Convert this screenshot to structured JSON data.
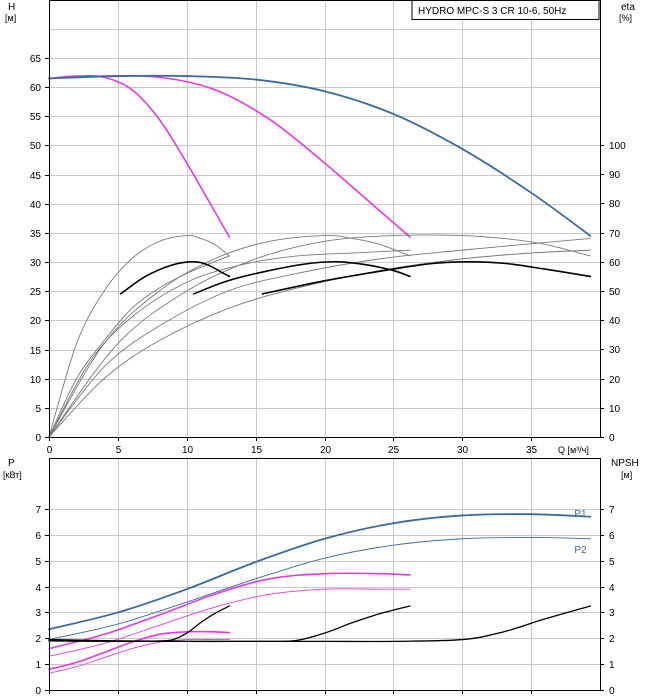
{
  "chart_data": [
    {
      "type": "line",
      "title": "HYDRO MPC-S 3 CR 10-6, 50Hz",
      "ylabel_left": "H",
      "yunit_left": "[м]",
      "ylabel_right": "eta",
      "yunit_right": "[%]",
      "xlabel": "Q [м³/ч]",
      "xlim": [
        0,
        40
      ],
      "ylim_left": [
        0,
        70
      ],
      "ylim_right": [
        0,
        140
      ],
      "x_ticks": [
        0,
        5,
        10,
        15,
        20,
        25,
        30,
        35
      ],
      "y_ticks_left": [
        0,
        5,
        10,
        15,
        20,
        25,
        30,
        35,
        40,
        45,
        50,
        55,
        60,
        65
      ],
      "y_ticks_right": [
        0,
        10,
        20,
        30,
        40,
        50,
        60,
        70,
        80,
        90,
        100
      ],
      "grid": true,
      "series": [
        {
          "axis": "left",
          "color": "#e23ae2",
          "width": 1.6,
          "x": [
            0,
            2,
            4,
            6,
            8,
            10,
            12,
            13.1
          ],
          "y": [
            61.5,
            61.9,
            61.7,
            59.6,
            54.5,
            47,
            38.8,
            34.3
          ]
        },
        {
          "axis": "left",
          "color": "#e23ae2",
          "width": 1.6,
          "x": [
            0,
            4,
            8,
            12,
            16,
            20,
            24,
            26.2
          ],
          "y": [
            61.5,
            61.9,
            61.7,
            59.6,
            54.5,
            47,
            38.8,
            34.3
          ]
        },
        {
          "axis": "left",
          "color": "#3a6a9e",
          "width": 1.8,
          "x": [
            0,
            5,
            10,
            15,
            20,
            25,
            30,
            35,
            39.3
          ],
          "y": [
            61.5,
            61.9,
            61.9,
            61.3,
            59.3,
            55.4,
            49.4,
            41.9,
            34.5
          ]
        },
        {
          "axis": "right",
          "color": "#7a7a7a",
          "width": 0.9,
          "x": [
            0,
            2,
            4,
            6,
            8,
            10,
            11,
            12,
            13.1
          ],
          "y": [
            0,
            32,
            50,
            61,
            67,
            69,
            68,
            66,
            62
          ]
        },
        {
          "axis": "right",
          "color": "#7a7a7a",
          "width": 0.9,
          "x": [
            0,
            4,
            8,
            12,
            16,
            20,
            22,
            24,
            26.2
          ],
          "y": [
            0,
            32,
            50,
            61,
            67,
            69,
            68,
            66,
            62
          ]
        },
        {
          "axis": "right",
          "color": "#7a7a7a",
          "width": 0.9,
          "x": [
            0,
            5,
            10,
            15,
            20,
            25,
            30,
            33,
            36,
            39.3
          ],
          "y": [
            0,
            32,
            50,
            61,
            67,
            69,
            69,
            68,
            66,
            62
          ]
        },
        {
          "axis": "right",
          "color": "#7a7a7a",
          "width": 0.9,
          "x": [
            0,
            3,
            6,
            10,
            14,
            18,
            22,
            26.2
          ],
          "y": [
            0,
            26,
            41,
            53,
            59,
            62,
            63,
            64
          ]
        },
        {
          "axis": "right",
          "color": "#7a7a7a",
          "width": 0.9,
          "x": [
            0,
            4,
            8,
            13,
            18,
            24,
            30,
            39.3
          ],
          "y": [
            0,
            24,
            38,
            50,
            56,
            61,
            64,
            68
          ]
        },
        {
          "axis": "right",
          "color": "#7a7a7a",
          "width": 0.9,
          "x": [
            0,
            4,
            8,
            13,
            18,
            24,
            30,
            35,
            39.3
          ],
          "y": [
            0,
            20,
            33,
            44,
            51,
            57,
            61,
            63,
            64
          ]
        },
        {
          "axis": "right",
          "color": "#7a7a7a",
          "width": 0.9,
          "x": [
            0,
            2,
            4,
            6,
            8,
            10,
            12,
            13.1
          ],
          "y": [
            0,
            20,
            33,
            44,
            51,
            56,
            60,
            62
          ]
        },
        {
          "axis": "right",
          "color": "#000000",
          "width": 1.6,
          "x": [
            5.2,
            7,
            9,
            10.5,
            11.5,
            12.5,
            13.1
          ],
          "y": [
            49,
            55,
            59,
            60,
            59,
            56.5,
            55
          ]
        },
        {
          "axis": "right",
          "color": "#000000",
          "width": 1.6,
          "x": [
            10.5,
            13,
            16,
            19,
            21,
            23,
            25,
            26.2
          ],
          "y": [
            49,
            53.5,
            57,
            59.5,
            60,
            59,
            57,
            55
          ]
        },
        {
          "axis": "right",
          "color": "#000000",
          "width": 1.6,
          "x": [
            15.5,
            20,
            25,
            28,
            30.5,
            33,
            36,
            39.3
          ],
          "y": [
            49,
            53.5,
            57.5,
            59.5,
            60,
            59.5,
            57.5,
            55
          ]
        }
      ]
    },
    {
      "type": "line",
      "ylabel_left": "P",
      "yunit_left": "[кВт]",
      "ylabel_right": "NPSH",
      "yunit_right": "[м]",
      "xlim": [
        0,
        40
      ],
      "ylim_left": [
        0,
        8
      ],
      "ylim_right": [
        0,
        8
      ],
      "y_ticks_left": [
        0,
        1,
        2,
        3,
        4,
        5,
        6,
        7
      ],
      "y_ticks_right": [
        0,
        1,
        2,
        3,
        4,
        5,
        6,
        7
      ],
      "grid": true,
      "series_labels": [
        {
          "text": "P1",
          "x": 39.3,
          "y": 6.85
        },
        {
          "text": "P2",
          "x": 39.3,
          "y": 5.45
        }
      ],
      "series": [
        {
          "axis": "left",
          "color": "#3a6a9e",
          "width": 1.8,
          "x": [
            0,
            5,
            10,
            15,
            20,
            25,
            30,
            35,
            39.3
          ],
          "y": [
            2.35,
            3.0,
            3.9,
            4.95,
            5.85,
            6.45,
            6.75,
            6.8,
            6.7
          ]
        },
        {
          "axis": "left",
          "color": "#3a6a9e",
          "width": 0.9,
          "x": [
            0,
            5,
            10,
            15,
            20,
            25,
            30,
            35,
            39.3
          ],
          "y": [
            1.95,
            2.55,
            3.4,
            4.3,
            5.1,
            5.6,
            5.85,
            5.9,
            5.85
          ]
        },
        {
          "axis": "left",
          "color": "#e23ae2",
          "width": 1.6,
          "x": [
            0,
            4,
            8,
            12,
            16,
            20,
            24,
            26.2
          ],
          "y": [
            1.6,
            2.15,
            2.9,
            3.7,
            4.3,
            4.5,
            4.5,
            4.45
          ]
        },
        {
          "axis": "left",
          "color": "#e23ae2",
          "width": 0.9,
          "x": [
            0,
            4,
            8,
            12,
            16,
            20,
            24,
            26.2
          ],
          "y": [
            1.3,
            1.8,
            2.5,
            3.2,
            3.7,
            3.9,
            3.9,
            3.9
          ]
        },
        {
          "axis": "left",
          "color": "#e23ae2",
          "width": 1.6,
          "x": [
            0,
            2,
            4,
            6,
            8,
            10,
            12,
            13.1
          ],
          "y": [
            0.8,
            1.07,
            1.45,
            1.85,
            2.15,
            2.25,
            2.25,
            2.22
          ]
        },
        {
          "axis": "left",
          "color": "#e23ae2",
          "width": 0.9,
          "x": [
            0,
            2,
            4,
            6,
            8,
            10,
            12,
            13.1
          ],
          "y": [
            0.65,
            0.9,
            1.25,
            1.6,
            1.85,
            1.95,
            1.95,
            1.95
          ]
        },
        {
          "axis": "right",
          "color": "#000000",
          "width": 1.3,
          "x": [
            0,
            5,
            10,
            15,
            20,
            25,
            30,
            33,
            36,
            39.3
          ],
          "y": [
            1.95,
            1.9,
            1.88,
            1.88,
            1.88,
            1.88,
            1.95,
            2.25,
            2.75,
            3.25
          ]
        },
        {
          "axis": "right",
          "color": "#000000",
          "width": 1.3,
          "x": [
            0,
            10,
            16,
            18,
            20,
            22,
            24,
            26.2
          ],
          "y": [
            1.9,
            1.88,
            1.88,
            1.92,
            2.2,
            2.6,
            2.95,
            3.25
          ]
        },
        {
          "axis": "right",
          "color": "#000000",
          "width": 1.3,
          "x": [
            0,
            5,
            8,
            9,
            10,
            11,
            12,
            13.1
          ],
          "y": [
            1.9,
            1.88,
            1.9,
            1.95,
            2.2,
            2.6,
            2.95,
            3.25
          ]
        }
      ]
    }
  ]
}
